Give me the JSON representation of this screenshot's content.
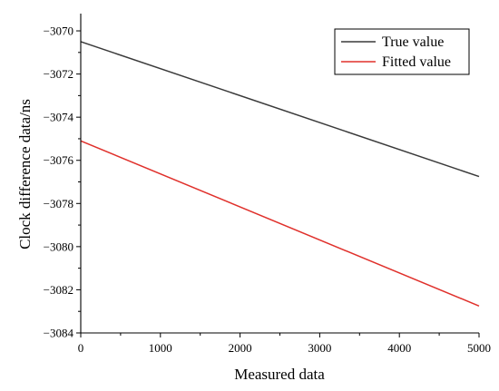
{
  "chart_data": {
    "type": "line",
    "title": "",
    "xlabel": "Measured data",
    "ylabel": "Clock difference data/ns",
    "xlim": [
      0,
      5000
    ],
    "ylim": [
      -3084,
      -3069.2
    ],
    "x_ticks": [
      0,
      1000,
      2000,
      3000,
      4000,
      5000
    ],
    "y_ticks": [
      -3084,
      -3082,
      -3080,
      -3078,
      -3076,
      -3074,
      -3072,
      -3070
    ],
    "x_tick_labels": [
      "0",
      "1000",
      "2000",
      "3000",
      "4000",
      "5000"
    ],
    "y_tick_labels": [
      "−3084",
      "−3082",
      "−3080",
      "−3078",
      "−3076",
      "−3074",
      "−3072",
      "−3070"
    ],
    "grid": false,
    "legend": "top-right",
    "series": [
      {
        "name": "True value",
        "color": "#3a3a3a",
        "x": [
          0,
          5000
        ],
        "y": [
          -3070.5,
          -3076.75
        ]
      },
      {
        "name": "Fitted value",
        "color": "#e0302b",
        "x": [
          0,
          5000
        ],
        "y": [
          -3075.1,
          -3082.75
        ]
      }
    ]
  }
}
